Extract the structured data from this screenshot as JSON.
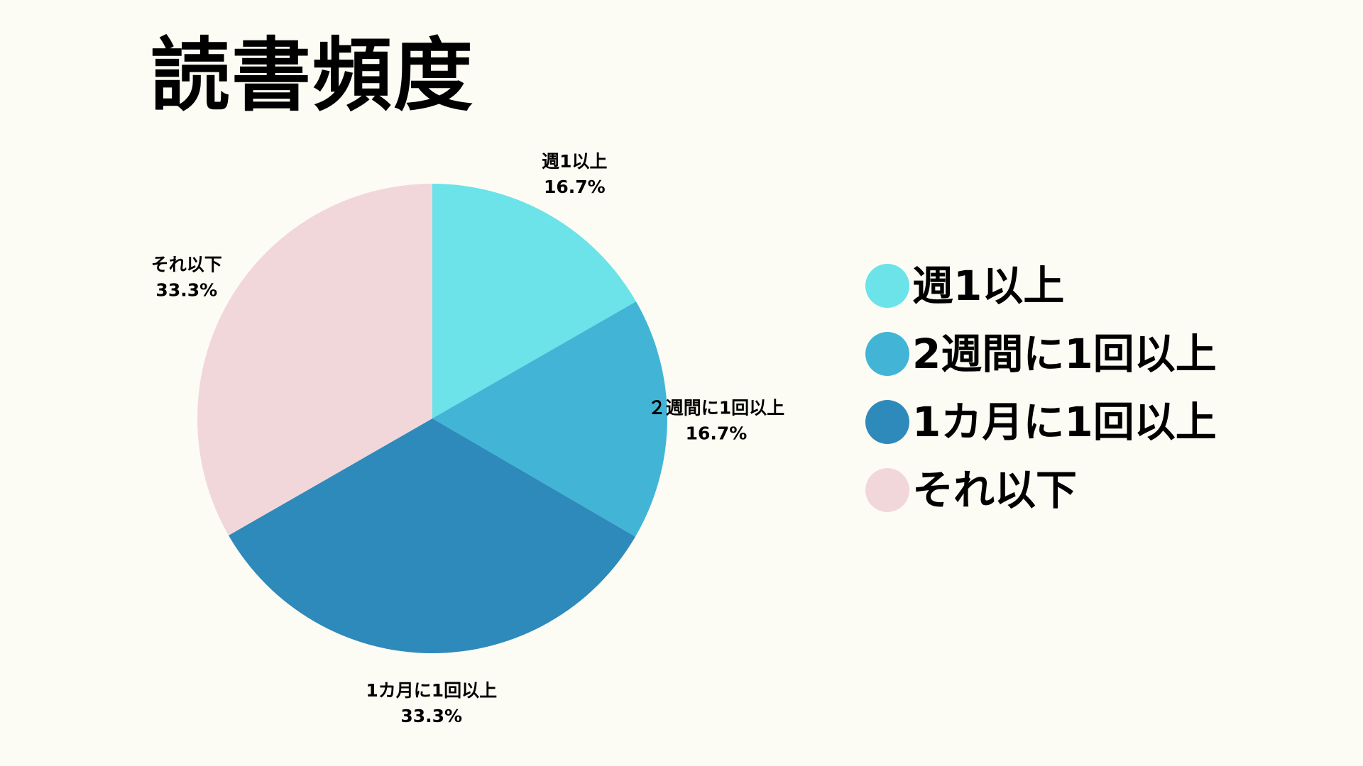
{
  "title": "読書頻度",
  "colors": {
    "background": "#FDFCF4",
    "text": "#000000"
  },
  "chart_data": {
    "type": "pie",
    "title": "読書頻度",
    "legend_position": "right",
    "slices": [
      {
        "label": "週1以上",
        "chart_label": "週1以上",
        "value": 16.7,
        "value_label": "16.7%",
        "color": "#6BE3E8"
      },
      {
        "label": "2週間に1回以上",
        "chart_label": "２週間に1回以上",
        "value": 16.7,
        "value_label": "16.7%",
        "color": "#42B5D6"
      },
      {
        "label": "1カ月に1回以上",
        "chart_label": "1カ月に1回以上",
        "value": 33.3,
        "value_label": "33.3%",
        "color": "#2E8ABA"
      },
      {
        "label": "それ以下",
        "chart_label": "それ以下",
        "value": 33.3,
        "value_label": "33.3%",
        "color": "#F2D7DA"
      }
    ]
  }
}
